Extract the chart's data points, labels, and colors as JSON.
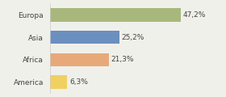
{
  "categories": [
    "Europa",
    "Asia",
    "Africa",
    "America"
  ],
  "values": [
    47.2,
    25.2,
    21.3,
    6.3
  ],
  "labels": [
    "47,2%",
    "25,2%",
    "21,3%",
    "6,3%"
  ],
  "bar_colors": [
    "#a8b87c",
    "#6b8fbf",
    "#e8a97a",
    "#f0d060"
  ],
  "background_color": "#f0f0ea",
  "xlim": [
    0,
    62
  ],
  "label_fontsize": 6.5,
  "category_fontsize": 6.5,
  "bar_height": 0.6
}
